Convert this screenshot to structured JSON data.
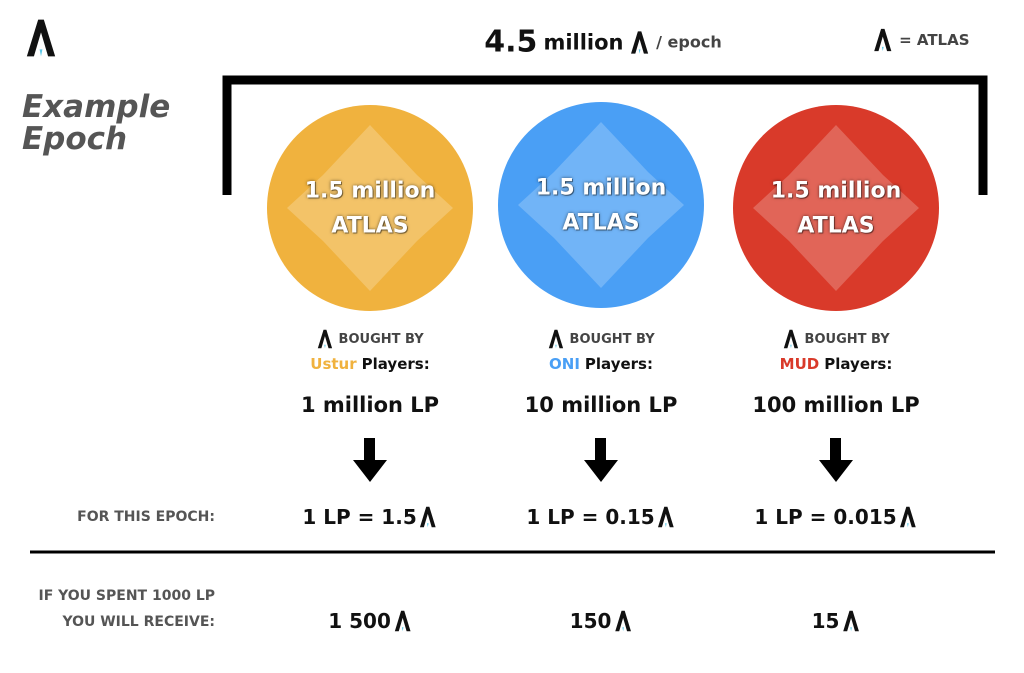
{
  "header": {
    "total_value": "4.5",
    "total_unit": "million",
    "per": "/ epoch",
    "legend": "= ATLAS"
  },
  "title": [
    "Example",
    "Epoch"
  ],
  "columns": [
    {
      "amount": "1.5 million",
      "token": "ATLAS",
      "bought_by": "BOUGHT BY",
      "faction": "Ustur",
      "players": "Players:",
      "lp": "1 million LP",
      "rate": "1 LP = 1.5",
      "receive": "1 500"
    },
    {
      "amount": "1.5 million",
      "token": "ATLAS",
      "bought_by": "BOUGHT BY",
      "faction": "ONI",
      "players": "Players:",
      "lp": "10 million LP",
      "rate": "1 LP = 0.15",
      "receive": "150"
    },
    {
      "amount": "1.5 million",
      "token": "ATLAS",
      "bought_by": "BOUGHT BY",
      "faction": "MUD",
      "players": "Players:",
      "lp": "100 million LP",
      "rate": "1 LP = 0.015",
      "receive": "15"
    }
  ],
  "row_labels": {
    "rate": "FOR THIS EPOCH:",
    "receive": [
      "IF YOU SPENT 1000 LP",
      "YOU WILL RECEIVE:"
    ]
  }
}
